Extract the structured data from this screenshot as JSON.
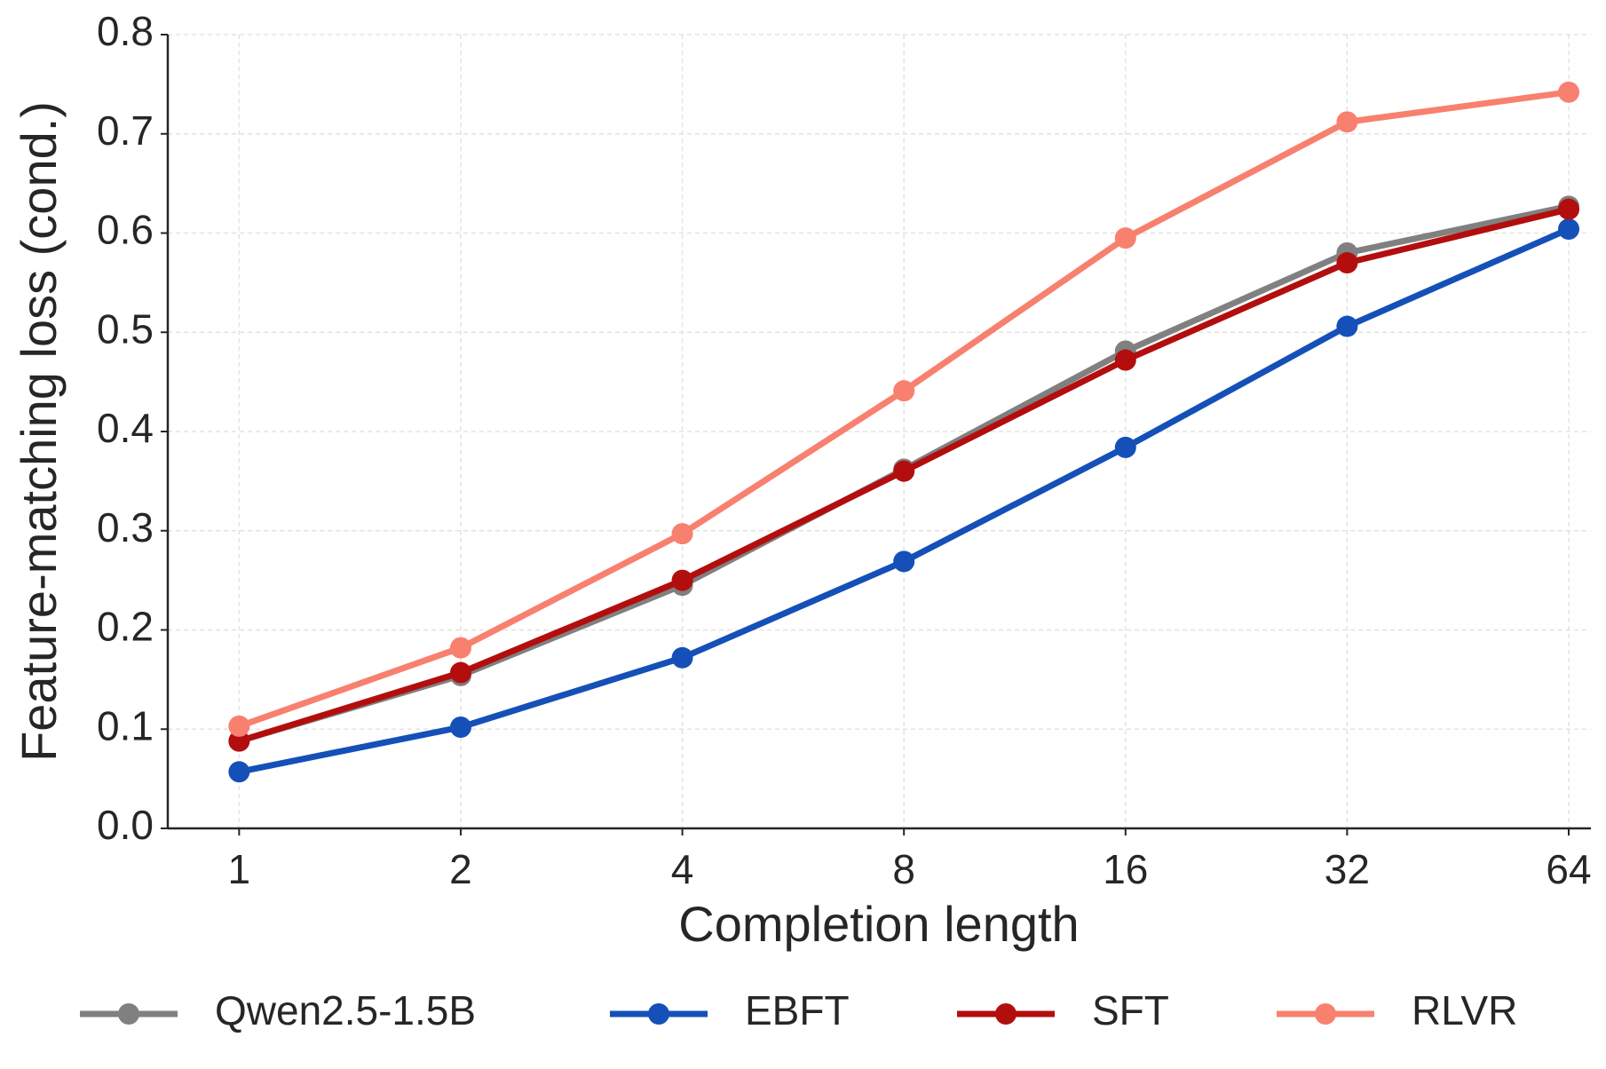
{
  "chart_data": {
    "type": "line",
    "xlabel": "Completion length",
    "ylabel": "Feature-matching loss (cond.)",
    "x": [
      1,
      2,
      4,
      8,
      16,
      32,
      64
    ],
    "xscale": "log2",
    "xlim": [
      0.8,
      68.6
    ],
    "xticks": [
      1,
      2,
      4,
      8,
      16,
      32,
      64
    ],
    "ylim": [
      0,
      0.8
    ],
    "yticks": [
      {
        "value": 0,
        "label": "0.0"
      },
      0.1,
      0.2,
      0.3,
      0.4,
      0.5,
      0.6,
      0.7,
      0.8
    ],
    "grid": true,
    "legend": "bottom",
    "series": [
      {
        "name": "Qwen2.5-1.5B",
        "color": "#808080",
        "values": [
          0.088,
          0.154,
          0.245,
          0.362,
          0.481,
          0.58,
          0.627
        ]
      },
      {
        "name": "EBFT",
        "color": "#1450b8",
        "values": [
          0.057,
          0.102,
          0.172,
          0.269,
          0.384,
          0.506,
          0.604
        ]
      },
      {
        "name": "SFT",
        "color": "#b30e0e",
        "values": [
          0.088,
          0.157,
          0.25,
          0.36,
          0.472,
          0.57,
          0.624
        ]
      },
      {
        "name": "RLVR",
        "color": "#f8806f",
        "values": [
          0.103,
          0.182,
          0.297,
          0.441,
          0.595,
          0.712,
          0.742
        ]
      }
    ]
  }
}
